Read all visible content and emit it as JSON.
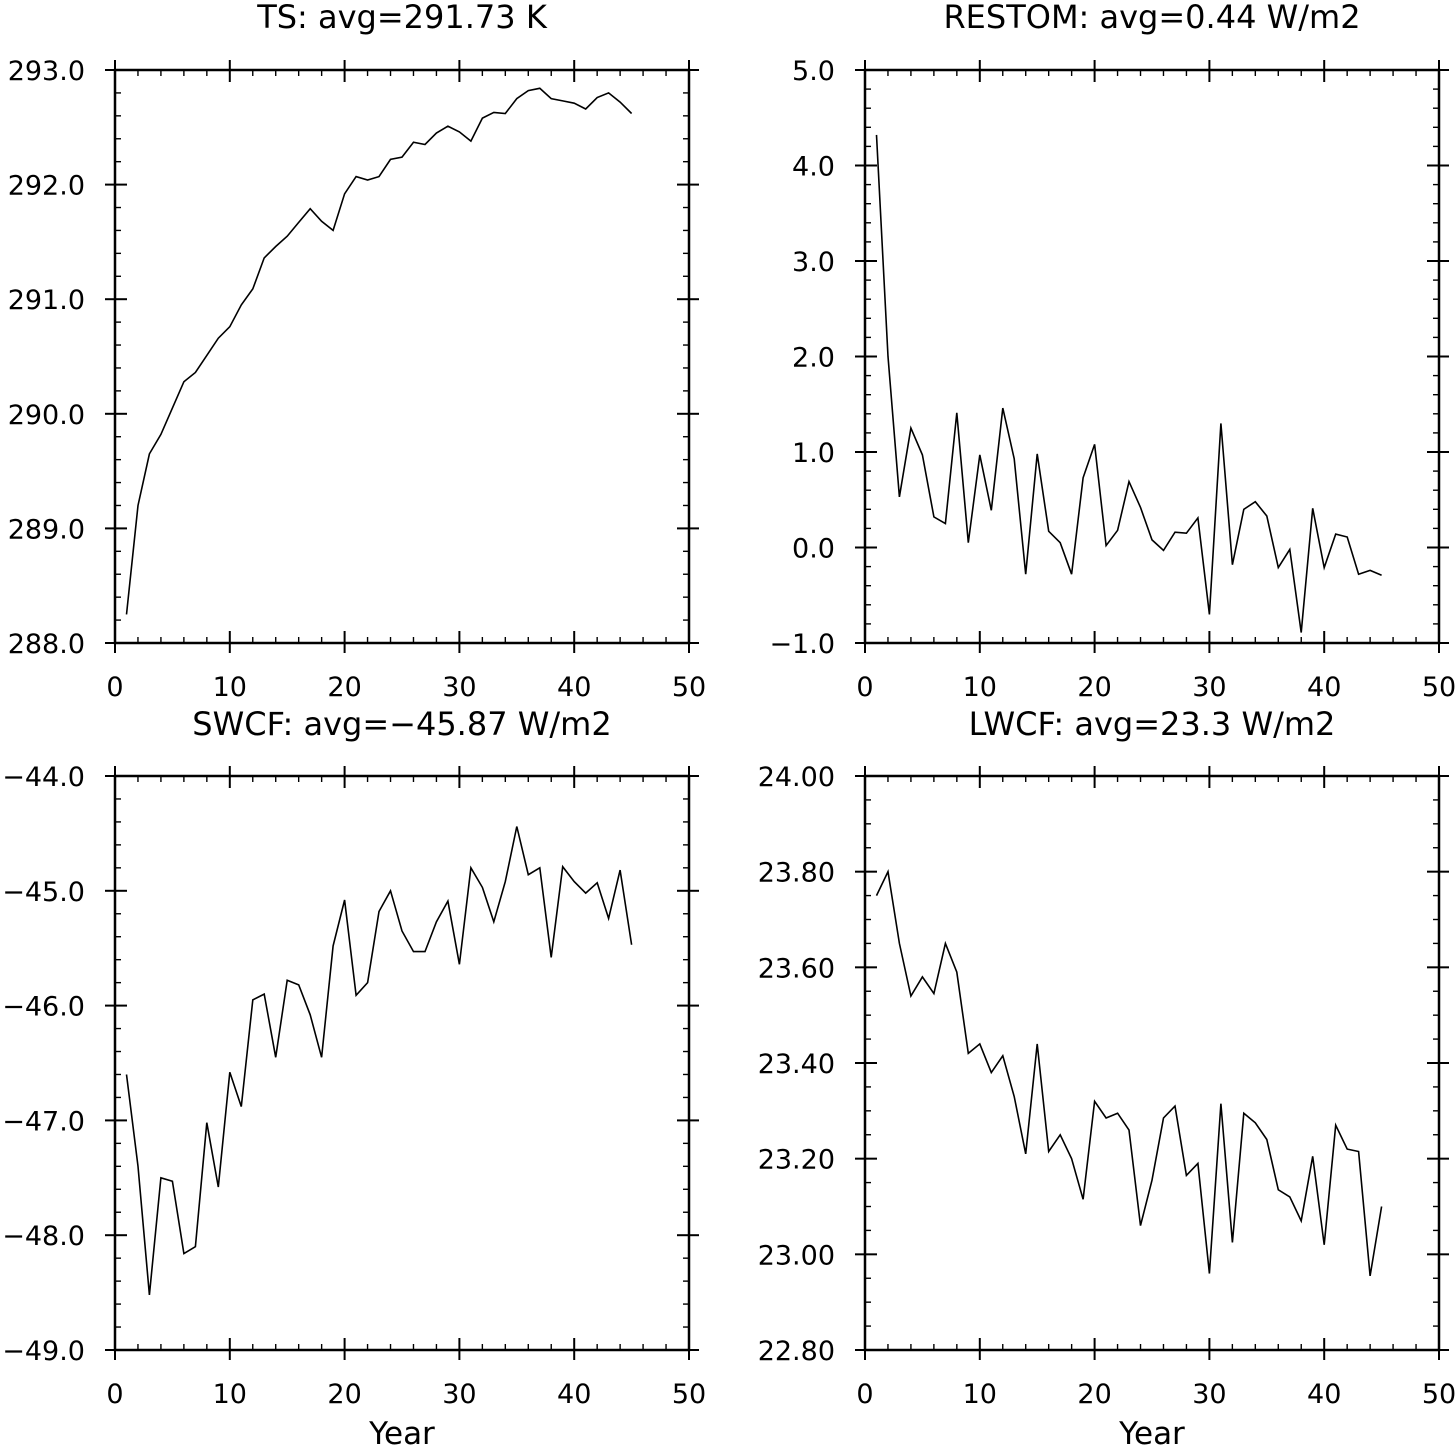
{
  "chart_data": [
    {
      "type": "line",
      "title": "TS: avg=291.73 K",
      "xlabel": "",
      "ylabel": "",
      "xlim": [
        0,
        50
      ],
      "ylim": [
        288.0,
        293.0
      ],
      "xticks": [
        "0",
        "10",
        "20",
        "30",
        "40",
        "50"
      ],
      "yticks": [
        "288.0",
        "289.0",
        "290.0",
        "291.0",
        "292.0",
        "293.0"
      ],
      "grid": false,
      "x": [
        1,
        2,
        3,
        4,
        5,
        6,
        7,
        8,
        9,
        10,
        11,
        12,
        13,
        14,
        15,
        16,
        17,
        18,
        19,
        20,
        21,
        22,
        23,
        24,
        25,
        26,
        27,
        28,
        29,
        30,
        31,
        32,
        33,
        34,
        35,
        36,
        37,
        38,
        39,
        40,
        41,
        42,
        43,
        44,
        45
      ],
      "values": [
        288.25,
        289.2,
        289.65,
        289.82,
        290.05,
        290.28,
        290.36,
        290.51,
        290.66,
        290.76,
        290.95,
        291.09,
        291.36,
        291.46,
        291.55,
        291.67,
        291.79,
        291.68,
        291.6,
        291.92,
        292.07,
        292.04,
        292.07,
        292.22,
        292.24,
        292.37,
        292.35,
        292.45,
        292.51,
        292.46,
        292.38,
        292.58,
        292.63,
        292.62,
        292.75,
        292.82,
        292.84,
        292.75,
        292.73,
        292.71,
        292.66,
        292.76,
        292.8,
        292.72,
        292.62
      ]
    },
    {
      "type": "line",
      "title": "RESTOM: avg=0.44 W/m2",
      "xlabel": "",
      "ylabel": "",
      "xlim": [
        0,
        50
      ],
      "ylim": [
        -1.0,
        5.0
      ],
      "xticks": [
        "0",
        "10",
        "20",
        "30",
        "40",
        "50"
      ],
      "yticks": [
        "−1.0",
        "0.0",
        "1.0",
        "2.0",
        "3.0",
        "4.0",
        "5.0"
      ],
      "grid": false,
      "x": [
        1,
        2,
        3,
        4,
        5,
        6,
        7,
        8,
        9,
        10,
        11,
        12,
        13,
        14,
        15,
        16,
        17,
        18,
        19,
        20,
        21,
        22,
        23,
        24,
        25,
        26,
        27,
        28,
        29,
        30,
        31,
        32,
        33,
        34,
        35,
        36,
        37,
        38,
        39,
        40,
        41,
        42,
        43,
        44,
        45
      ],
      "values": [
        4.32,
        2.0,
        0.53,
        1.25,
        0.97,
        0.32,
        0.25,
        1.41,
        0.05,
        0.97,
        0.39,
        1.46,
        0.93,
        -0.28,
        0.98,
        0.17,
        0.05,
        -0.28,
        0.73,
        1.08,
        0.02,
        0.18,
        0.69,
        0.42,
        0.08,
        -0.03,
        0.16,
        0.15,
        0.31,
        -0.7,
        1.3,
        -0.18,
        0.4,
        0.48,
        0.33,
        -0.21,
        -0.02,
        -0.89,
        0.41,
        -0.21,
        0.14,
        0.11,
        -0.28,
        -0.24,
        -0.29
      ]
    },
    {
      "type": "line",
      "title": "SWCF: avg=−45.87 W/m2",
      "xlabel": "Year",
      "ylabel": "",
      "xlim": [
        0,
        50
      ],
      "ylim": [
        -49.0,
        -44.0
      ],
      "xticks": [
        "0",
        "10",
        "20",
        "30",
        "40",
        "50"
      ],
      "yticks": [
        "−49.0",
        "−48.0",
        "−47.0",
        "−46.0",
        "−45.0",
        "−44.0"
      ],
      "grid": false,
      "x": [
        1,
        2,
        3,
        4,
        5,
        6,
        7,
        8,
        9,
        10,
        11,
        12,
        13,
        14,
        15,
        16,
        17,
        18,
        19,
        20,
        21,
        22,
        23,
        24,
        25,
        26,
        27,
        28,
        29,
        30,
        31,
        32,
        33,
        34,
        35,
        36,
        37,
        38,
        39,
        40,
        41,
        42,
        43,
        44,
        45
      ],
      "values": [
        -46.6,
        -47.4,
        -48.52,
        -47.5,
        -47.53,
        -48.16,
        -48.1,
        -47.02,
        -47.58,
        -46.58,
        -46.88,
        -45.95,
        -45.9,
        -46.45,
        -45.78,
        -45.82,
        -46.08,
        -46.45,
        -45.48,
        -45.08,
        -45.91,
        -45.8,
        -45.18,
        -45.0,
        -45.35,
        -45.53,
        -45.53,
        -45.27,
        -45.09,
        -45.64,
        -44.8,
        -44.97,
        -45.27,
        -44.92,
        -44.44,
        -44.86,
        -44.8,
        -45.58,
        -44.79,
        -44.92,
        -45.02,
        -44.93,
        -45.24,
        -44.82,
        -45.47
      ]
    },
    {
      "type": "line",
      "title": "LWCF: avg=23.3 W/m2",
      "xlabel": "Year",
      "ylabel": "",
      "xlim": [
        0,
        50
      ],
      "ylim": [
        22.8,
        24.0
      ],
      "xticks": [
        "0",
        "10",
        "20",
        "30",
        "40",
        "50"
      ],
      "yticks": [
        "22.80",
        "23.00",
        "23.20",
        "23.40",
        "23.60",
        "23.80",
        "24.00"
      ],
      "grid": false,
      "x": [
        1,
        2,
        3,
        4,
        5,
        6,
        7,
        8,
        9,
        10,
        11,
        12,
        13,
        14,
        15,
        16,
        17,
        18,
        19,
        20,
        21,
        22,
        23,
        24,
        25,
        26,
        27,
        28,
        29,
        30,
        31,
        32,
        33,
        34,
        35,
        36,
        37,
        38,
        39,
        40,
        41,
        42,
        43,
        44,
        45
      ],
      "values": [
        23.75,
        23.8,
        23.65,
        23.54,
        23.58,
        23.545,
        23.65,
        23.59,
        23.42,
        23.44,
        23.38,
        23.415,
        23.33,
        23.21,
        23.44,
        23.215,
        23.25,
        23.2,
        23.115,
        23.32,
        23.285,
        23.295,
        23.26,
        23.06,
        23.155,
        23.285,
        23.31,
        23.165,
        23.19,
        22.96,
        23.315,
        23.025,
        23.295,
        23.275,
        23.24,
        23.135,
        23.12,
        23.07,
        23.205,
        23.02,
        23.27,
        23.22,
        23.215,
        22.955,
        23.1
      ]
    }
  ]
}
